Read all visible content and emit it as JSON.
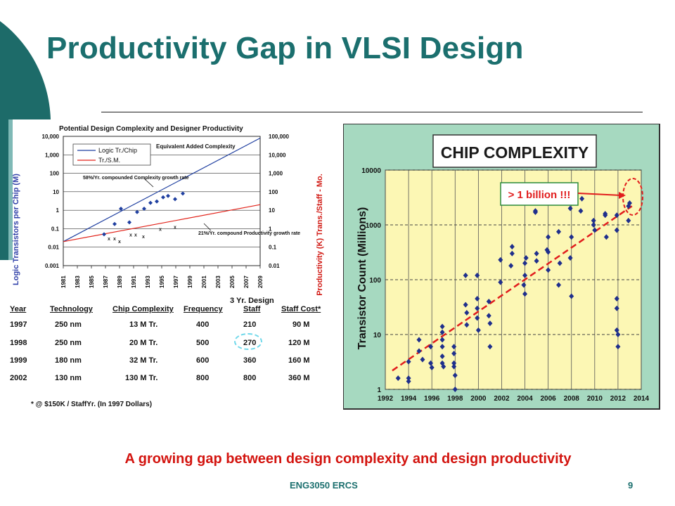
{
  "slide": {
    "title": "Productivity Gap in VLSI Design",
    "caption": "A growing gap between design complexity and design productivity",
    "footer": "ENG3050 ERCS",
    "page_number": "9",
    "colors": {
      "title": "#1b6f6e",
      "caption": "#d3140f",
      "accent_teal": "#1d6b69"
    }
  },
  "chart_data": [
    {
      "type": "line",
      "title": "Potential Design Complexity and Designer Productivity",
      "ylabel": "Logic Transistors per Chip (M)",
      "y2label": "Productivity (K) Trans./Staff - Mo.",
      "y_scale": "log",
      "ylim": [
        0.001,
        10000
      ],
      "y2lim": [
        0.01,
        100000
      ],
      "y_tick_labels": [
        "10,000",
        "1,000",
        "100",
        "10",
        "1",
        "0.1",
        "0.01",
        "0.001"
      ],
      "y2_tick_labels": [
        "100,000",
        "10,000",
        "1,000",
        "100",
        "10",
        "1",
        "0.1",
        "0.01"
      ],
      "x_tick_labels": [
        "1981",
        "1983",
        "1985",
        "1987",
        "1989",
        "1991",
        "1993",
        "1995",
        "1997",
        "1999",
        "2001",
        "2003",
        "2005",
        "2007",
        "2009"
      ],
      "xlim": [
        1981,
        2009
      ],
      "legend": [
        "Logic Tr./Chip",
        "Tr./S.M."
      ],
      "annotations": [
        "Equivalent Added Complexity",
        "58%/Yr. compounded Complexity growth rate",
        "21%/Yr. compound Productivity growth rate"
      ],
      "series": [
        {
          "name": "Logic Tr./Chip",
          "color": "#1f3fa0",
          "x": [
            1981,
            2009
          ],
          "y": [
            0.02,
            8000
          ]
        },
        {
          "name": "Tr./S.M.",
          "color": "#e2231a",
          "x": [
            1981,
            2009
          ],
          "y": [
            0.02,
            2
          ]
        }
      ],
      "complexity_points": {
        "x": [
          1986.8,
          1988.3,
          1989.2,
          1990.4,
          1991.5,
          1992.5,
          1993.4,
          1994.3,
          1995.2,
          1995.9,
          1996.9,
          1998.0
        ],
        "y": [
          0.05,
          0.18,
          1.2,
          0.22,
          0.8,
          1.2,
          2.5,
          3,
          5,
          6,
          4,
          8
        ]
      },
      "productivity_points": {
        "x": [
          1987.5,
          1988.3,
          1989.0,
          1990.6,
          1991.3,
          1992.4,
          1994.8,
          1996.9
        ],
        "y": [
          0.031,
          0.031,
          0.021,
          0.05,
          0.05,
          0.04,
          0.1,
          0.13
        ]
      }
    },
    {
      "type": "scatter",
      "title": "CHIP COMPLEXITY",
      "ylabel": "Transistor Count (Millions)",
      "y_scale": "log",
      "ylim": [
        1,
        10000
      ],
      "xlim": [
        1992,
        2014
      ],
      "x_tick_labels": [
        "1992",
        "1994",
        "1996",
        "1998",
        "2000",
        "2002",
        "2004",
        "2006",
        "2008",
        "2010",
        "2012",
        "2014"
      ],
      "y_tick_labels": [
        "10000",
        "1000",
        "100",
        "10",
        "1"
      ],
      "annotation": "> 1 billion !!!",
      "trend": {
        "x": [
          1992.6,
          2013.2
        ],
        "y": [
          2.2,
          2200
        ]
      },
      "points": {
        "x": [
          1993.1,
          1994.0,
          1994.0,
          1994.0,
          1994.9,
          1994.9,
          1995.2,
          1995.9,
          1995.9,
          1996.0,
          1996.9,
          1996.9,
          1996.9,
          1996.9,
          1996.9,
          1996.9,
          1997.0,
          1997.9,
          1997.9,
          1997.9,
          1997.9,
          1998.0,
          1998.0,
          1998.9,
          1998.9,
          1999.0,
          1999.0,
          1999.9,
          1999.9,
          1999.9,
          1999.9,
          2000.0,
          2000.9,
          2000.9,
          2001.0,
          2001.0,
          2001.9,
          2001.9,
          2002.8,
          2002.9,
          2002.9,
          2003.9,
          2004.0,
          2004.0,
          2004.0,
          2004.1,
          2004.9,
          2004.9,
          2005.0,
          2005.0,
          2005.9,
          2006.0,
          2006.0,
          2006.0,
          2006.9,
          2006.9,
          2007.0,
          2007.9,
          2007.9,
          2008.0,
          2008.0,
          2008.8,
          2008.9,
          2009.9,
          2009.9,
          2010.0,
          2010.9,
          2010.9,
          2011.0,
          2011.9,
          2011.9,
          2011.9,
          2011.9,
          2011.9,
          2012.0,
          2012.0,
          2012.9,
          2012.9,
          2013.0
        ],
        "y": [
          1.6,
          1.4,
          1.6,
          3.2,
          5,
          8,
          3.5,
          6,
          3,
          2.5,
          14,
          11,
          8,
          6,
          4,
          3,
          2.6,
          6,
          4.5,
          3,
          2.6,
          1.8,
          1,
          120,
          35,
          25,
          15,
          20,
          30,
          45,
          120,
          12,
          40,
          22,
          6,
          16,
          230,
          90,
          180,
          300,
          400,
          80,
          55,
          120,
          200,
          250,
          1800,
          1700,
          300,
          220,
          350,
          600,
          150,
          320,
          750,
          80,
          200,
          2000,
          250,
          600,
          50,
          1800,
          3000,
          1000,
          1200,
          800,
          1600,
          1500,
          600,
          1500,
          800,
          45,
          30,
          12,
          10,
          6,
          2200,
          1200,
          2500
        ]
      }
    }
  ],
  "table": {
    "design_note": "3 Yr. Design",
    "headers": [
      "Year",
      "Technology",
      "Chip Complexity",
      "Frequency",
      "Staff",
      "Staff Cost*"
    ],
    "rows": [
      [
        "1997",
        "250 nm",
        "13 M Tr.",
        "400",
        "210",
        "90 M"
      ],
      [
        "1998",
        "250 nm",
        "20 M Tr.",
        "500",
        "270",
        "120 M"
      ],
      [
        "1999",
        "180 nm",
        "32 M Tr.",
        "600",
        "360",
        "160 M"
      ],
      [
        "2002",
        "130 nm",
        "130 M Tr.",
        "800",
        "800",
        "360 M"
      ]
    ],
    "footnote": "* @ $150K / StaffYr. (In 1997 Dollars)"
  }
}
